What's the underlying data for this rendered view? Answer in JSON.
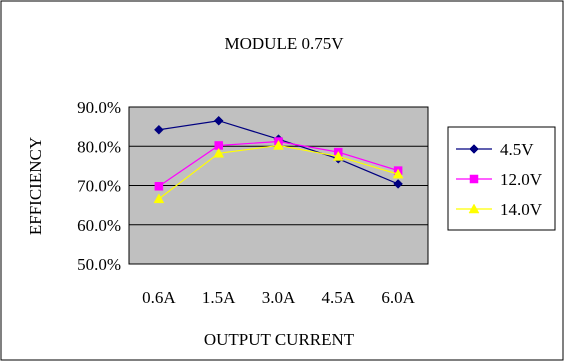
{
  "chart_data": {
    "type": "line",
    "title": "MODULE 0.75V",
    "xlabel": "OUTPUT CURRENT",
    "ylabel": "EFFICIENCY",
    "categories": [
      "0.6A",
      "1.5A",
      "3.0A",
      "4.5A",
      "6.0A"
    ],
    "y_ticks": [
      "50.0%",
      "60.0%",
      "70.0%",
      "80.0%",
      "90.0%"
    ],
    "y_tick_values": [
      50,
      60,
      70,
      80,
      90
    ],
    "ylim": [
      50,
      90
    ],
    "grid": "horizontal",
    "legend_position": "right",
    "plot_background": "#c0c0c0",
    "series": [
      {
        "name": "4.5V",
        "marker": "diamond",
        "color": "#000080",
        "values": [
          84.2,
          86.5,
          81.8,
          76.8,
          70.4
        ]
      },
      {
        "name": "12.0V",
        "marker": "square",
        "color": "#ff00ff",
        "values": [
          69.8,
          80.2,
          81.2,
          78.5,
          73.8
        ]
      },
      {
        "name": "14.0V",
        "marker": "triangle",
        "color": "#ffff00",
        "values": [
          66.6,
          78.2,
          80.2,
          77.4,
          72.9
        ]
      }
    ]
  }
}
